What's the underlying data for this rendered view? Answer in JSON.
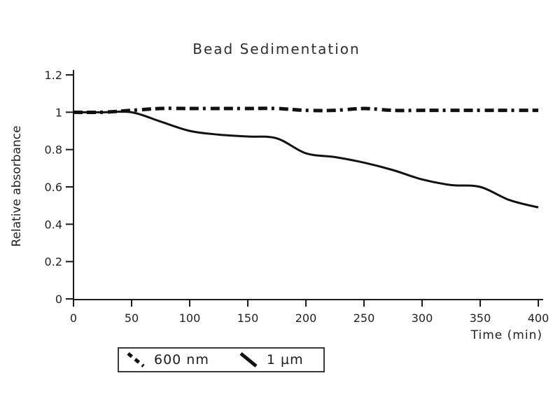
{
  "title": "Bead Sedimentation",
  "colors": {
    "line": "#111111",
    "axis": "#1a1a1a",
    "text": "#222222",
    "background": "#ffffff"
  },
  "chart_data": {
    "type": "line",
    "title": "Bead Sedimentation",
    "xlabel": "Time (min)",
    "ylabel": "Relative absorbance",
    "x": [
      0,
      25,
      50,
      75,
      100,
      125,
      150,
      175,
      200,
      225,
      250,
      275,
      300,
      325,
      350,
      375,
      400
    ],
    "series": [
      {
        "name": "600 nm",
        "style": "dashed",
        "values": [
          1.0,
          1.0,
          1.01,
          1.02,
          1.02,
          1.02,
          1.02,
          1.02,
          1.01,
          1.01,
          1.02,
          1.01,
          1.01,
          1.01,
          1.01,
          1.01,
          1.01
        ]
      },
      {
        "name": "1 µm",
        "style": "solid",
        "values": [
          1.0,
          1.0,
          1.0,
          0.95,
          0.9,
          0.88,
          0.87,
          0.86,
          0.78,
          0.76,
          0.73,
          0.69,
          0.64,
          0.61,
          0.6,
          0.53,
          0.49
        ]
      }
    ],
    "xlim": [
      0,
      400
    ],
    "ylim": [
      0,
      1.2
    ],
    "x_ticks": [
      0,
      50,
      100,
      150,
      200,
      250,
      300,
      350,
      400
    ],
    "y_ticks": [
      0,
      0.2,
      0.4,
      0.6,
      0.8,
      1,
      1.2
    ],
    "grid": false,
    "legend_position": "bottom-left"
  },
  "legend": {
    "items": [
      {
        "label": "600 nm",
        "marker": "dashed-line"
      },
      {
        "label": "1 µm",
        "marker": "solid-line"
      }
    ]
  }
}
